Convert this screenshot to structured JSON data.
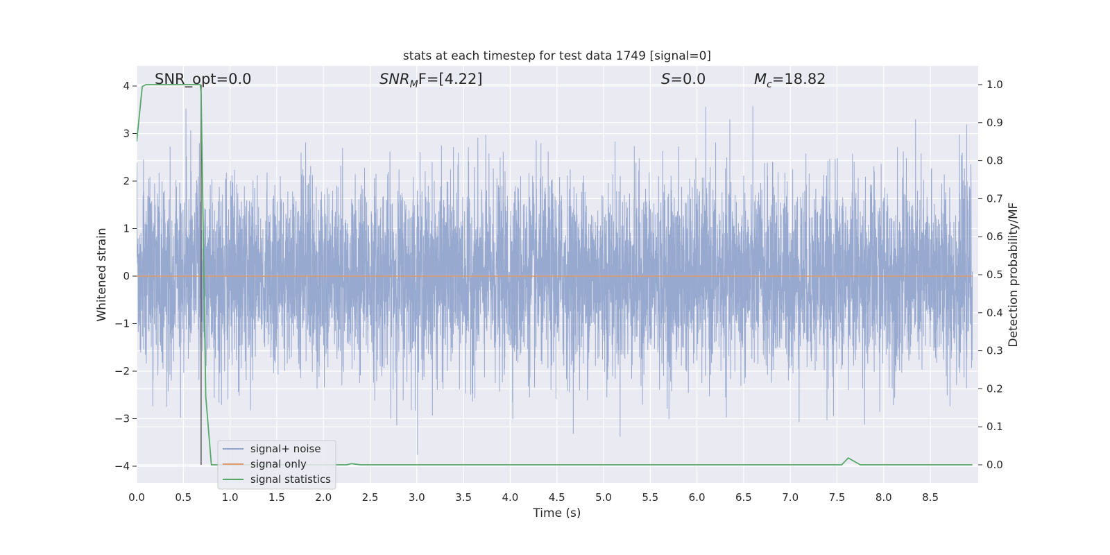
{
  "chart_data": {
    "type": "line",
    "title": "stats at each timestep for test data 1749 [signal=0]",
    "xlabel": "Time (s)",
    "ylabel": "Whitened strain",
    "y2label": "Detection probability/MF",
    "xlim": [
      0.0,
      9.0
    ],
    "ylim": [
      -4.35,
      4.4
    ],
    "y2lim": [
      -0.05,
      1.04
    ],
    "x_ticks": [
      "0.0",
      "0.5",
      "1.0",
      "1.5",
      "2.0",
      "2.5",
      "3.0",
      "3.5",
      "4.0",
      "4.5",
      "5.0",
      "5.5",
      "6.0",
      "6.5",
      "7.0",
      "7.5",
      "8.0",
      "8.5"
    ],
    "y_ticks": [
      "4",
      "3",
      "2",
      "1",
      "0",
      "−1",
      "−2",
      "−3",
      "−4"
    ],
    "y2_ticks": [
      "1.0",
      "0.9",
      "0.8",
      "0.7",
      "0.6",
      "0.5",
      "0.4",
      "0.3",
      "0.2",
      "0.1",
      "0.0"
    ],
    "grid": true,
    "legend_position": "lower-left",
    "annotations": {
      "snr_opt": "SNR_opt=0.0",
      "snr_mf_main": "SNR",
      "snr_mf_sub": "M",
      "snr_mf_rest": "F=[4.22]",
      "s_main": "S",
      "s_rest": "=0.0",
      "mc_main": "M",
      "mc_sub": "c",
      "mc_rest": "=18.82"
    },
    "series": [
      {
        "name": "signal+ noise",
        "color": "#8fa2cc",
        "note": "whitened strain noise, roughly within ±2.5 with spikes to ±4",
        "sample_rate_hz": 2048,
        "duration_s": 8.95,
        "approx_std": 1.0
      },
      {
        "name": "signal only",
        "color": "#dd9a6c",
        "x": [
          0.0,
          8.95
        ],
        "y": [
          0.0,
          0.0
        ]
      },
      {
        "name": "signal statistics",
        "color": "#55a868",
        "axis": "right",
        "x": [
          0.0,
          0.06,
          0.1,
          0.2,
          0.4,
          0.6,
          0.68,
          0.69,
          0.74,
          0.8,
          0.9,
          1.5,
          2.0,
          2.25,
          2.3,
          2.4,
          3.0,
          4.0,
          5.0,
          6.0,
          7.0,
          7.55,
          7.62,
          7.75,
          8.0,
          8.5,
          8.95
        ],
        "y": [
          0.85,
          0.995,
          1.0,
          1.0,
          1.0,
          1.0,
          1.0,
          0.98,
          0.18,
          0.0,
          0.0,
          0.0,
          0.0,
          0.0,
          0.003,
          0.0,
          0.0,
          0.0,
          0.0,
          0.0,
          0.0,
          0.0,
          0.018,
          0.0,
          0.0,
          0.0,
          0.0
        ]
      }
    ],
    "vertical_marker": {
      "x": 0.69,
      "color": "#555555"
    }
  }
}
